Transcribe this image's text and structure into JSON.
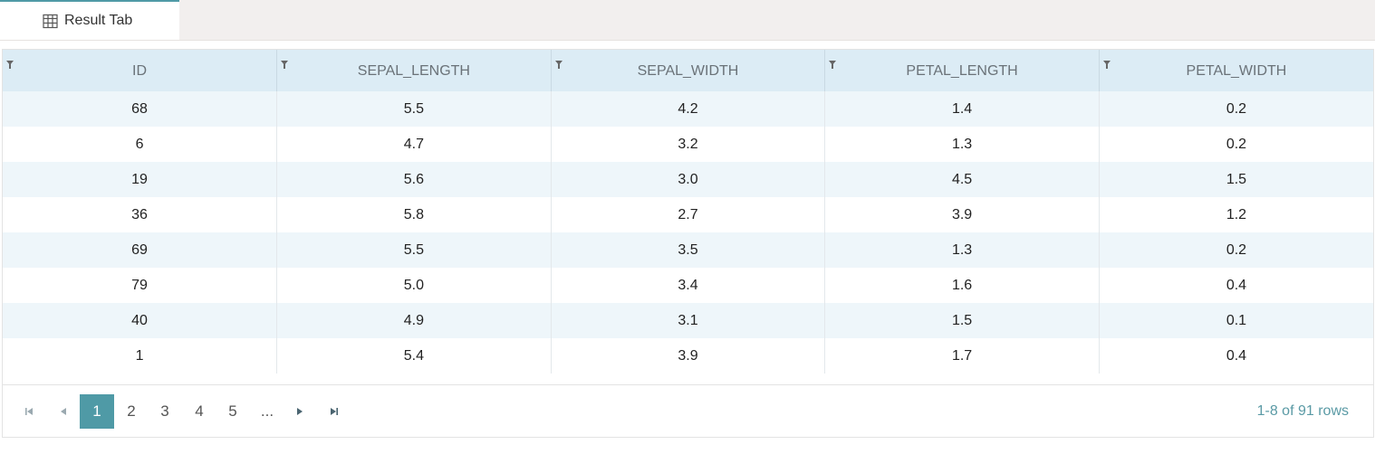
{
  "tab": {
    "label": "Result Tab",
    "icon": "table-grid-icon"
  },
  "table": {
    "columns": [
      "ID",
      "SEPAL_LENGTH",
      "SEPAL_WIDTH",
      "PETAL_LENGTH",
      "PETAL_WIDTH"
    ],
    "rows": [
      [
        "68",
        "5.5",
        "4.2",
        "1.4",
        "0.2"
      ],
      [
        "6",
        "4.7",
        "3.2",
        "1.3",
        "0.2"
      ],
      [
        "19",
        "5.6",
        "3.0",
        "4.5",
        "1.5"
      ],
      [
        "36",
        "5.8",
        "2.7",
        "3.9",
        "1.2"
      ],
      [
        "69",
        "5.5",
        "3.5",
        "1.3",
        "0.2"
      ],
      [
        "79",
        "5.0",
        "3.4",
        "1.6",
        "0.4"
      ],
      [
        "40",
        "4.9",
        "3.1",
        "1.5",
        "0.1"
      ],
      [
        "1",
        "5.4",
        "3.9",
        "1.7",
        "0.4"
      ]
    ]
  },
  "pager": {
    "pages": [
      "1",
      "2",
      "3",
      "4",
      "5",
      "..."
    ],
    "current": "1",
    "info": "1-8 of 91 rows"
  },
  "colors": {
    "accent": "#4f9aa6",
    "header_bg": "#dcecf5",
    "stripe": "#eef6fa"
  }
}
